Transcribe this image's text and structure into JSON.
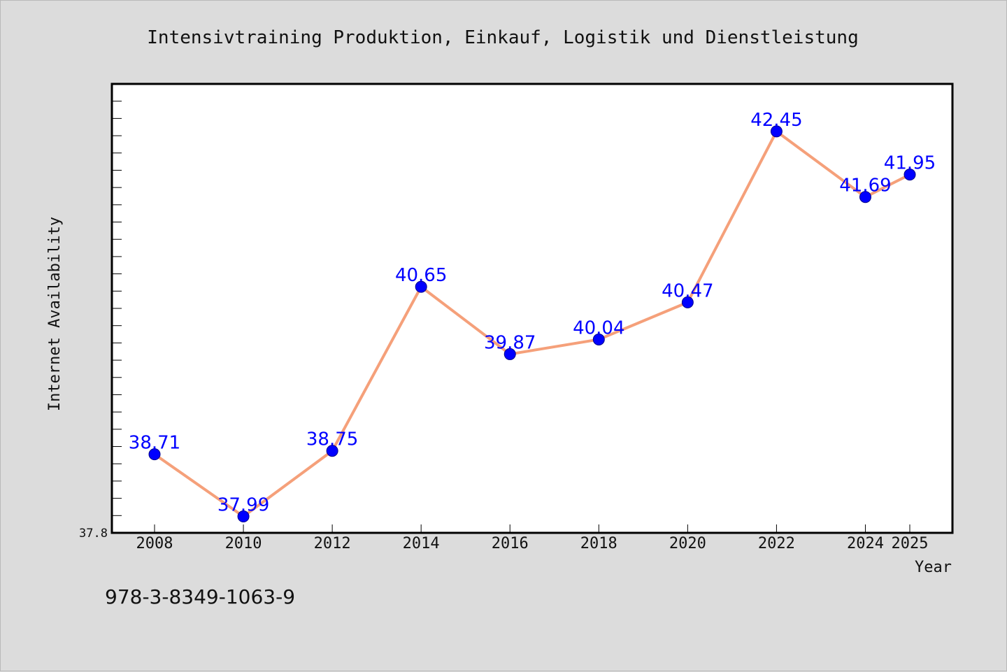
{
  "chart_data": {
    "type": "line",
    "title": "Intensivtraining Produktion, Einkauf, Logistik und Dienstleistung",
    "xlabel": "Year",
    "ylabel": "Internet Availability",
    "x": [
      "2008",
      "2010",
      "2012",
      "2014",
      "2016",
      "2018",
      "2020",
      "2022",
      "2024",
      "2025"
    ],
    "series": [
      {
        "values": [
          38.71,
          37.99,
          38.75,
          40.65,
          39.87,
          40.04,
          40.47,
          42.45,
          41.69,
          41.95
        ],
        "line_color": "#f5a07a",
        "marker_color": "#0000ff",
        "label_color": "#0000ff"
      }
    ],
    "ylim": [
      37.8,
      43.0
    ],
    "y_tick_labels": [
      "37.8"
    ],
    "grid": false,
    "legend": "none"
  },
  "footer": {
    "isbn": "978-3-8349-1063-9"
  },
  "colors": {
    "background": "#dcdcdc",
    "plot_background": "#ffffff",
    "axis": "#000000"
  }
}
